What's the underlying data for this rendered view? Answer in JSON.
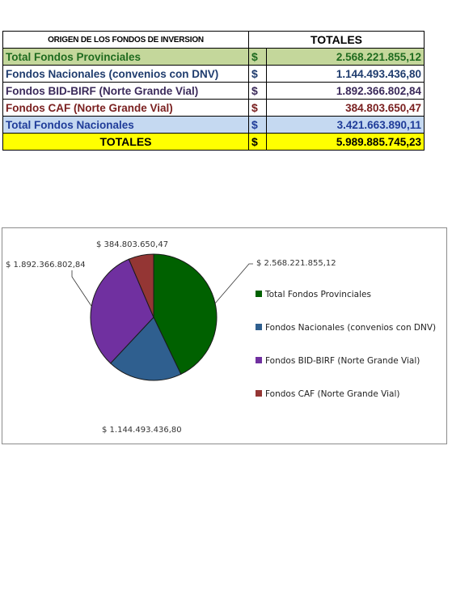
{
  "table": {
    "header": {
      "col1": "ORIGEN DE LOS FONDOS DE INVERSION",
      "col2": "TOTALES"
    },
    "rows": [
      {
        "label": "Total Fondos Provinciales",
        "currency": "$",
        "value": "2.568.221.855,12",
        "bg": "#c4d79b",
        "color": "#1f6b1f"
      },
      {
        "label": "Fondos Nacionales (convenios con DNV)",
        "currency": "$",
        "value": "1.144.493.436,80",
        "bg": "#ffffff",
        "color": "#1f3c6e"
      },
      {
        "label": "Fondos BID-BIRF (Norte Grande Vial)",
        "currency": "$",
        "value": "1.892.366.802,84",
        "bg": "#ffffff",
        "color": "#3b2a5a"
      },
      {
        "label": "Fondos CAF (Norte Grande Vial)",
        "currency": "$",
        "value": "384.803.650,47",
        "bg": "#ffffff",
        "color": "#7a2020"
      },
      {
        "label": "Total Fondos Nacionales",
        "currency": "$",
        "value": "3.421.663.890,11",
        "bg": "#c5d9f1",
        "color": "#1f3c99"
      }
    ],
    "totals": {
      "label": "TOTALES",
      "currency": "$",
      "value": "5.989.885.745,23",
      "bg": "#ffff00",
      "color": "#000000"
    }
  },
  "chart_data": {
    "type": "pie",
    "categories": [
      "Total Fondos Provinciales",
      "Fondos Nacionales (convenios con DNV)",
      "Fondos BID-BIRF (Norte Grande Vial)",
      "Fondos CAF (Norte Grande Vial)"
    ],
    "values": [
      2568221855.12,
      1144493436.8,
      1892366802.84,
      384803650.47
    ],
    "data_labels": [
      "$ 2.568.221.855,12",
      "$ 1.144.493.436,80",
      "$ 1.892.366.802,84",
      "$ 384.803.650,47"
    ],
    "colors": [
      "#006100",
      "#2f5f8f",
      "#7030a0",
      "#943634"
    ],
    "legend_placement": "right",
    "start_angle_degrees": 0,
    "direction": "clockwise"
  }
}
